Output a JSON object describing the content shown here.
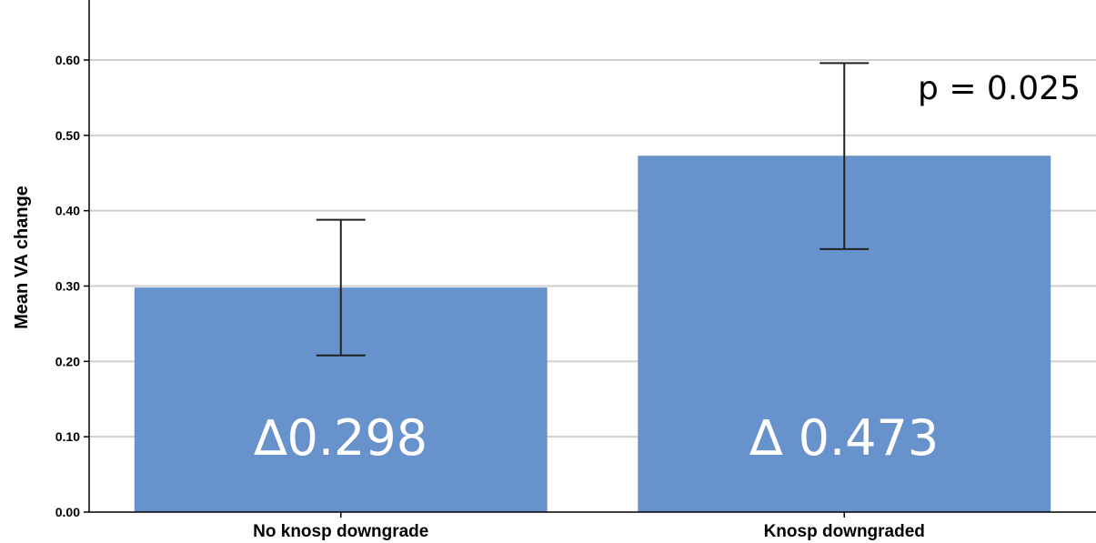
{
  "chart_data": {
    "type": "bar",
    "categories": [
      "No knosp downgrade",
      "Knosp downgraded"
    ],
    "values": [
      0.298,
      0.473
    ],
    "error_bars": [
      {
        "low": 0.208,
        "high": 0.388
      },
      {
        "low": 0.349,
        "high": 0.596
      }
    ],
    "bar_labels": [
      "∆0.298",
      "∆ 0.473"
    ],
    "annotation": "p = 0.025",
    "xlabel": "",
    "ylabel": "Mean VA change",
    "ylim": [
      0,
      0.66
    ],
    "yticks": [
      0.0,
      0.1,
      0.2,
      0.3,
      0.4,
      0.5,
      0.6
    ],
    "ytick_labels": [
      "0.00",
      "0.10",
      "0.20",
      "0.30",
      "0.40",
      "0.50",
      "0.60"
    ],
    "grid": true,
    "bar_color": "#6792cb"
  }
}
